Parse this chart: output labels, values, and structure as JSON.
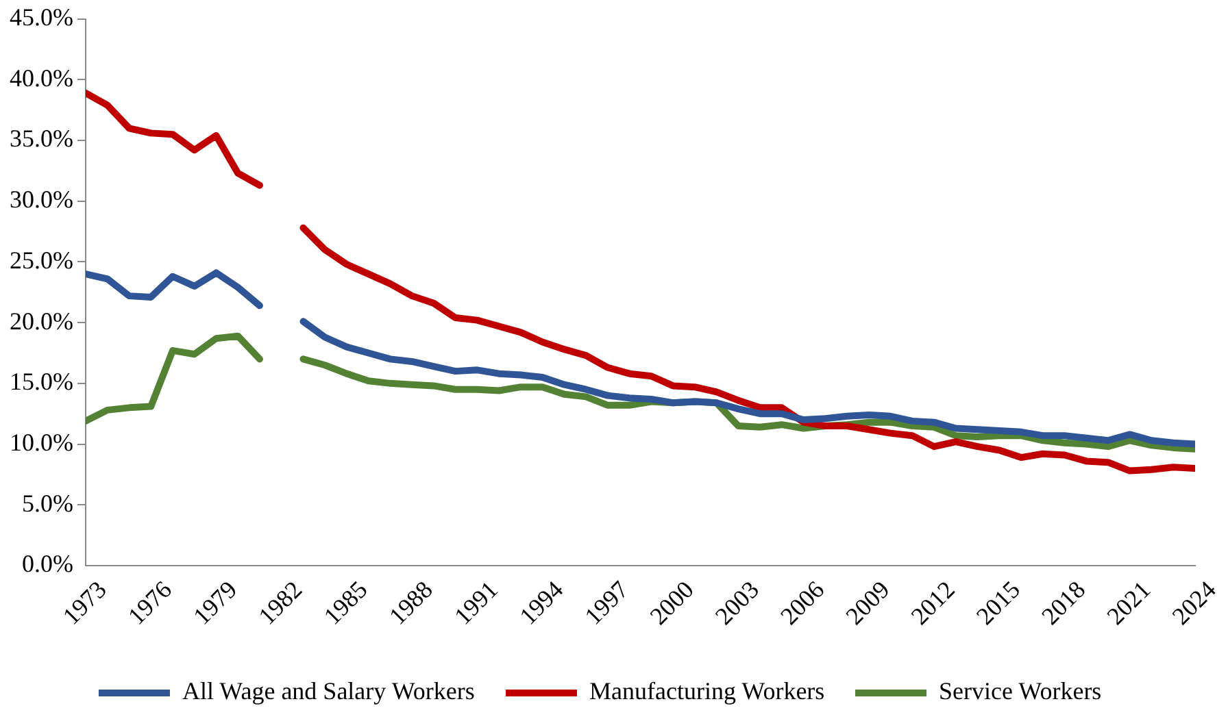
{
  "chart_data": {
    "type": "line",
    "x": [
      1973,
      1974,
      1975,
      1976,
      1977,
      1978,
      1979,
      1980,
      1981,
      1982,
      1983,
      1984,
      1985,
      1986,
      1987,
      1988,
      1989,
      1990,
      1991,
      1992,
      1993,
      1994,
      1995,
      1996,
      1997,
      1998,
      1999,
      2000,
      2001,
      2002,
      2003,
      2004,
      2005,
      2006,
      2007,
      2008,
      2009,
      2010,
      2011,
      2012,
      2013,
      2014,
      2015,
      2016,
      2017,
      2018,
      2019,
      2020,
      2021,
      2022,
      2023,
      2024
    ],
    "series": [
      {
        "name": "All Wage and Salary Workers",
        "color": "#2f5597",
        "values": [
          24.0,
          23.6,
          22.2,
          22.1,
          23.8,
          23.0,
          24.1,
          22.9,
          21.4,
          null,
          20.1,
          18.8,
          18.0,
          17.5,
          17.0,
          16.8,
          16.4,
          16.0,
          16.1,
          15.8,
          15.7,
          15.5,
          14.9,
          14.5,
          14.0,
          13.8,
          13.7,
          13.4,
          13.5,
          13.4,
          12.9,
          12.5,
          12.5,
          12.0,
          12.1,
          12.3,
          12.4,
          12.3,
          11.9,
          11.8,
          11.3,
          11.2,
          11.1,
          11.0,
          10.7,
          10.7,
          10.5,
          10.3,
          10.8,
          10.3,
          10.1,
          10.0
        ]
      },
      {
        "name": "Manufacturing Workers",
        "color": "#c00000",
        "values": [
          38.9,
          37.9,
          36.0,
          35.6,
          35.5,
          34.2,
          35.4,
          32.3,
          31.3,
          null,
          27.8,
          26.0,
          24.8,
          24.0,
          23.2,
          22.2,
          21.6,
          20.4,
          20.2,
          19.7,
          19.2,
          18.4,
          17.8,
          17.3,
          16.3,
          15.8,
          15.6,
          14.8,
          14.7,
          14.3,
          13.6,
          13.0,
          13.0,
          11.8,
          11.5,
          11.5,
          11.2,
          10.9,
          10.7,
          9.8,
          10.2,
          9.8,
          9.5,
          8.9,
          9.2,
          9.1,
          8.6,
          8.5,
          7.8,
          7.9,
          8.1,
          8.0
        ]
      },
      {
        "name": "Service Workers",
        "color": "#548235",
        "values": [
          11.9,
          12.8,
          13.0,
          13.1,
          17.7,
          17.4,
          18.7,
          18.9,
          17.0,
          null,
          17.0,
          16.5,
          15.8,
          15.2,
          15.0,
          14.9,
          14.8,
          14.5,
          14.5,
          14.4,
          14.7,
          14.7,
          14.1,
          13.9,
          13.2,
          13.2,
          13.5,
          13.4,
          13.5,
          13.4,
          11.5,
          11.4,
          11.6,
          11.3,
          11.5,
          11.6,
          11.8,
          11.8,
          11.5,
          11.4,
          10.7,
          10.6,
          10.7,
          10.7,
          10.3,
          10.1,
          10.0,
          9.8,
          10.3,
          9.9,
          9.7,
          9.6
        ]
      }
    ],
    "xlim": [
      1973,
      2024
    ],
    "xticks": [
      1973,
      1976,
      1979,
      1982,
      1985,
      1988,
      1991,
      1994,
      1997,
      2000,
      2003,
      2006,
      2009,
      2012,
      2015,
      2018,
      2021,
      2024
    ],
    "ylim": [
      0,
      45
    ],
    "yticks": [
      {
        "value": 0,
        "label": "0.0%"
      },
      {
        "value": 5,
        "label": "5.0%"
      },
      {
        "value": 10,
        "label": "10.0%"
      },
      {
        "value": 15,
        "label": "15.0%"
      },
      {
        "value": 20,
        "label": "20.0%"
      },
      {
        "value": 25,
        "label": "25.0%"
      },
      {
        "value": 30,
        "label": "30.0%"
      },
      {
        "value": 35,
        "label": "35.0%"
      },
      {
        "value": 40,
        "label": "40.0%"
      },
      {
        "value": 45,
        "label": "45.0%"
      }
    ],
    "grid": false,
    "legend": "bottom",
    "marker": "none",
    "line_style": "solid"
  }
}
